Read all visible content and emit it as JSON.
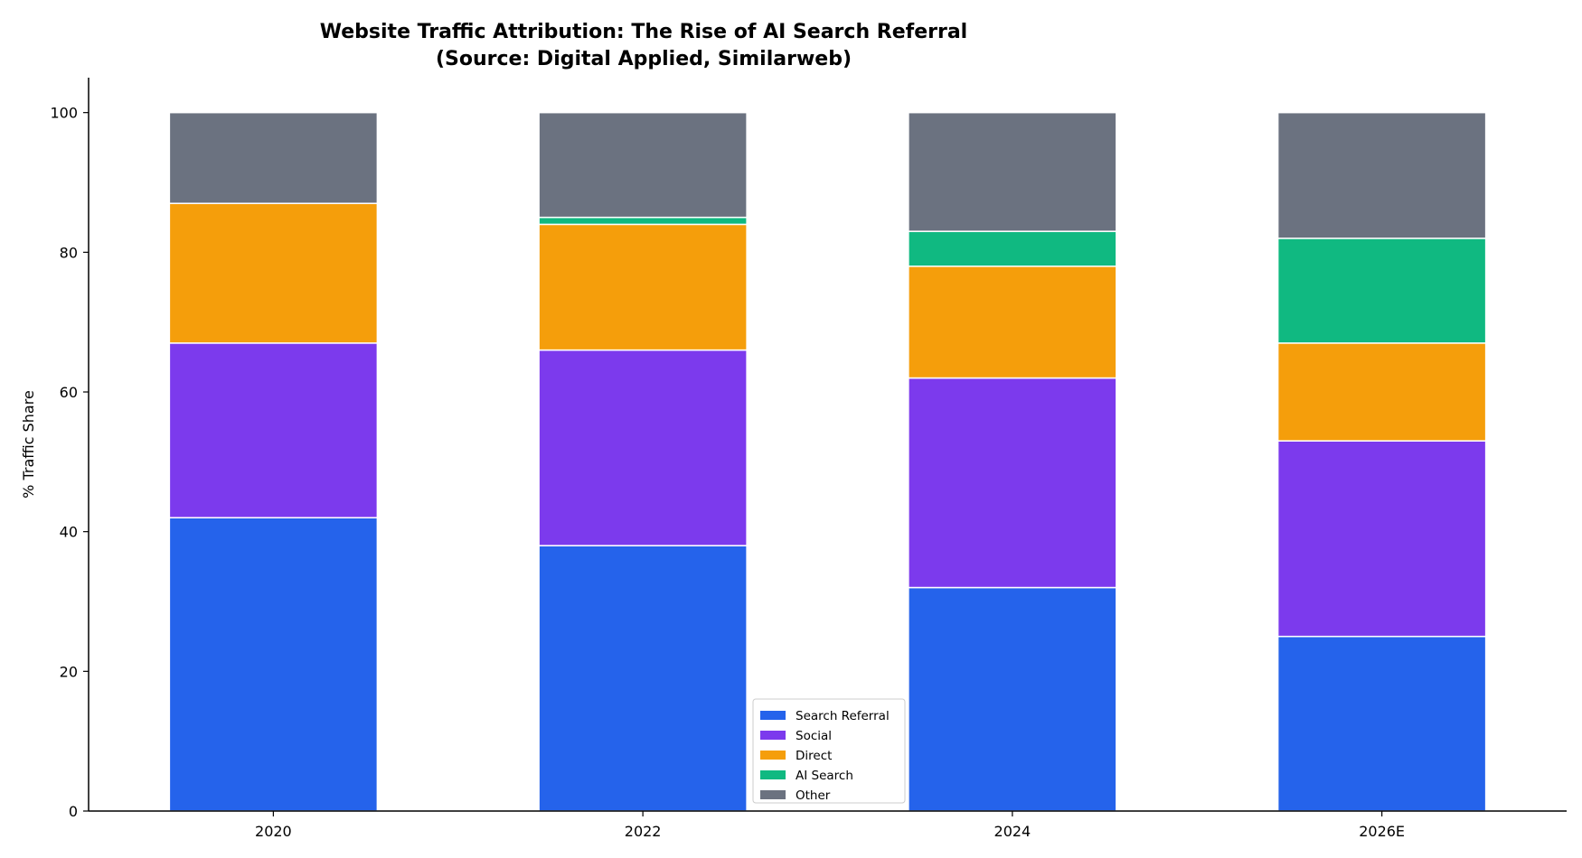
{
  "chart_data": {
    "type": "bar",
    "stacked": true,
    "title_line1": "Website Traffic Attribution: The Rise of AI Search Referral",
    "title_line2": "(Source: Digital Applied, Similarweb)",
    "xlabel": "",
    "ylabel": "% Traffic Share",
    "ylim": [
      0,
      105
    ],
    "yticks": [
      0,
      20,
      40,
      60,
      80,
      100
    ],
    "categories": [
      "2020",
      "2022",
      "2024",
      "2026E"
    ],
    "series": [
      {
        "name": "Search Referral",
        "color": "#2563eb",
        "values": [
          42,
          38,
          32,
          25
        ]
      },
      {
        "name": "Social",
        "color": "#7c3aed",
        "values": [
          25,
          28,
          30,
          28
        ]
      },
      {
        "name": "Direct",
        "color": "#f59e0b",
        "values": [
          20,
          18,
          16,
          14
        ]
      },
      {
        "name": "AI Search",
        "color": "#10b981",
        "values": [
          0,
          1,
          5,
          15
        ]
      },
      {
        "name": "Other",
        "color": "#6b7280",
        "values": [
          13,
          15,
          17,
          18
        ]
      }
    ],
    "grid": false,
    "legend_position": "bottom-center"
  }
}
